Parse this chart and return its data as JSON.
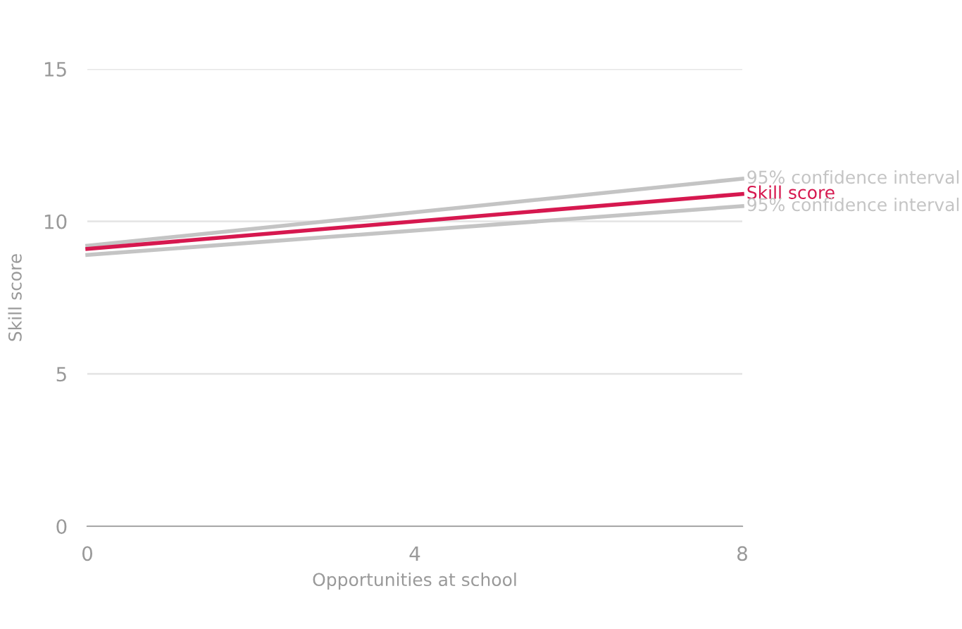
{
  "chart_data": {
    "type": "line",
    "xlabel": "Opportunities at school",
    "ylabel": "Skill score",
    "x": [
      0,
      8
    ],
    "xlim": [
      0,
      8
    ],
    "xticks": [
      0,
      4,
      8
    ],
    "ylim": [
      0,
      15
    ],
    "yticks": [
      0,
      5,
      10,
      15
    ],
    "grid": "y",
    "legend": false,
    "marker": "none",
    "line_style": "solid",
    "series": [
      {
        "name": "95% confidence interval",
        "color": "#c4c4c4",
        "values": [
          9.2,
          11.4
        ]
      },
      {
        "name": "Skill score",
        "color": "#d6184f",
        "values": [
          9.1,
          10.9
        ]
      },
      {
        "name": "95% confidence interval",
        "color": "#c4c4c4",
        "values": [
          8.9,
          10.5
        ]
      }
    ]
  }
}
